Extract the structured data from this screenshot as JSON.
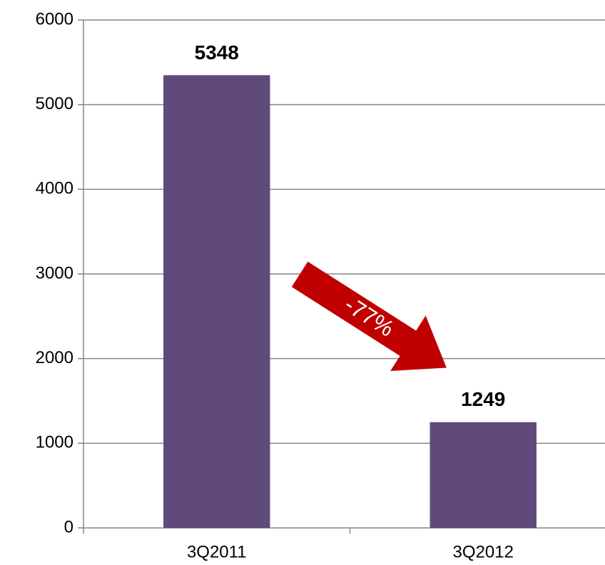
{
  "chart_data": {
    "type": "bar",
    "categories": [
      "3Q2011",
      "3Q2012"
    ],
    "values": [
      5348,
      1249
    ],
    "color": "#604a7b",
    "ylim": [
      0,
      6000
    ],
    "yticks": [
      0,
      1000,
      2000,
      3000,
      4000,
      5000,
      6000
    ],
    "grid": true,
    "annotation": "-77%"
  }
}
